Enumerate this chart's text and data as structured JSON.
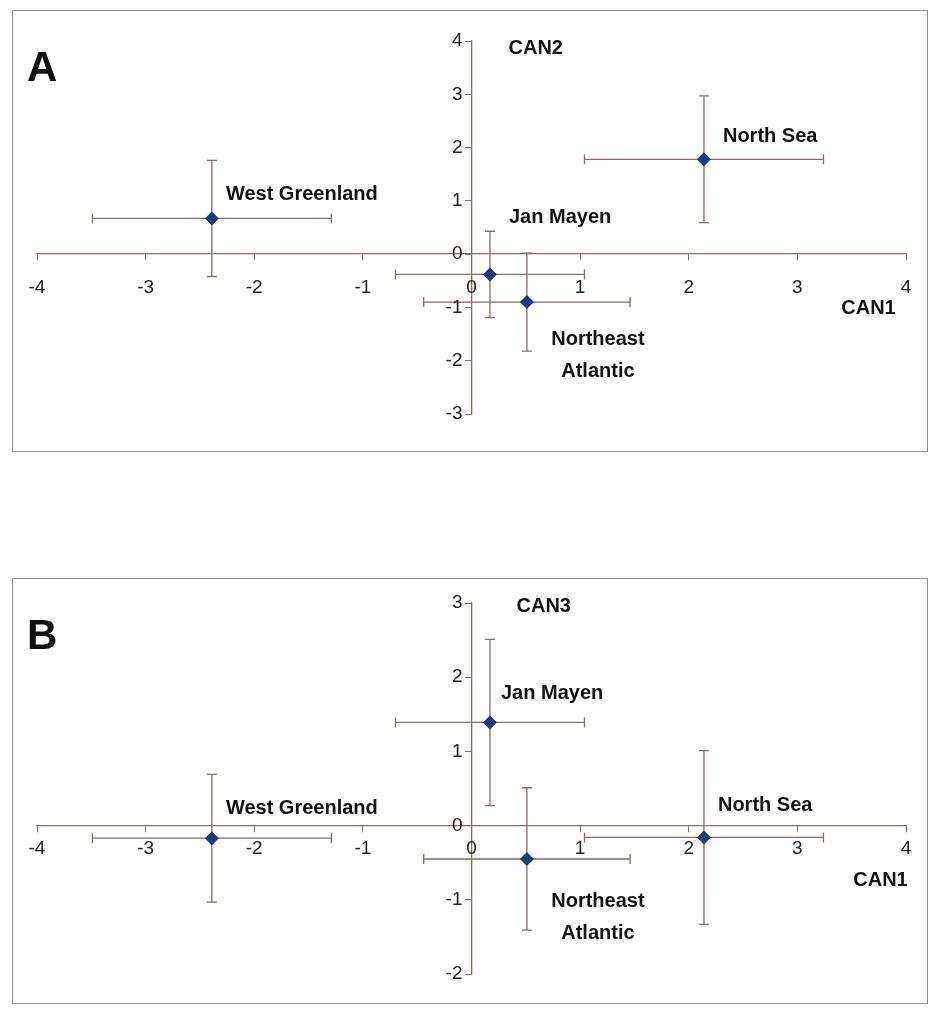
{
  "chart_data": [
    {
      "type": "scatter",
      "title": "A",
      "xlabel": "CAN1",
      "ylabel": "CAN2",
      "xlim": [
        -4,
        4
      ],
      "ylim": [
        -3,
        4
      ],
      "xticks": [
        -4,
        -3,
        -2,
        -1,
        0,
        1,
        2,
        3,
        4
      ],
      "yticks": [
        -3,
        -2,
        -1,
        0,
        1,
        2,
        3,
        4
      ],
      "grid": false,
      "marker": "diamond",
      "series": [
        {
          "name": "West Greenland",
          "color": "#1f3a78",
          "x": [
            -2.39
          ],
          "values": [
            0.67
          ],
          "errors": [
            1.09
          ],
          "xerrors": [
            1.1
          ]
        },
        {
          "name": "Jan Mayen",
          "color": "#1f3a78",
          "x": [
            0.17
          ],
          "values": [
            -0.38
          ],
          "errors": [
            0.81
          ],
          "xerrors": [
            0.87
          ]
        },
        {
          "name": "North Sea",
          "color": "#1f3a78",
          "x": [
            2.14
          ],
          "values": [
            1.78
          ],
          "errors": [
            1.19
          ],
          "xerrors": [
            1.1
          ]
        },
        {
          "name": "Northeast Atlantic",
          "color": "#1f3a78",
          "x": [
            0.51
          ],
          "values": [
            -0.9
          ],
          "errors": [
            0.92
          ],
          "xerrors": [
            0.95
          ]
        }
      ]
    },
    {
      "type": "scatter",
      "title": "B",
      "xlabel": "CAN1",
      "ylabel": "CAN3",
      "xlim": [
        -4,
        4
      ],
      "ylim": [
        -2,
        3
      ],
      "xticks": [
        -4,
        -3,
        -2,
        -1,
        0,
        1,
        2,
        3,
        4
      ],
      "yticks": [
        -2,
        -1,
        0,
        1,
        2,
        3
      ],
      "grid": false,
      "marker": "diamond",
      "series": [
        {
          "name": "West Greenland",
          "color": "#1f3a78",
          "x": [
            -2.39
          ],
          "values": [
            -0.17
          ],
          "errors": [
            0.86
          ],
          "xerrors": [
            1.1
          ]
        },
        {
          "name": "Jan Mayen",
          "color": "#1f3a78",
          "x": [
            0.17
          ],
          "values": [
            1.39
          ],
          "errors": [
            1.12
          ],
          "xerrors": [
            0.87
          ]
        },
        {
          "name": "North Sea",
          "color": "#1f3a78",
          "x": [
            2.14
          ],
          "values": [
            -0.16
          ],
          "errors": [
            1.17
          ],
          "xerrors": [
            1.1
          ]
        },
        {
          "name": "Northeast Atlantic",
          "color": "#1f3a78",
          "x": [
            0.51
          ],
          "values": [
            -0.45
          ],
          "errors": [
            0.96
          ],
          "xerrors": [
            0.95
          ]
        }
      ]
    }
  ]
}
